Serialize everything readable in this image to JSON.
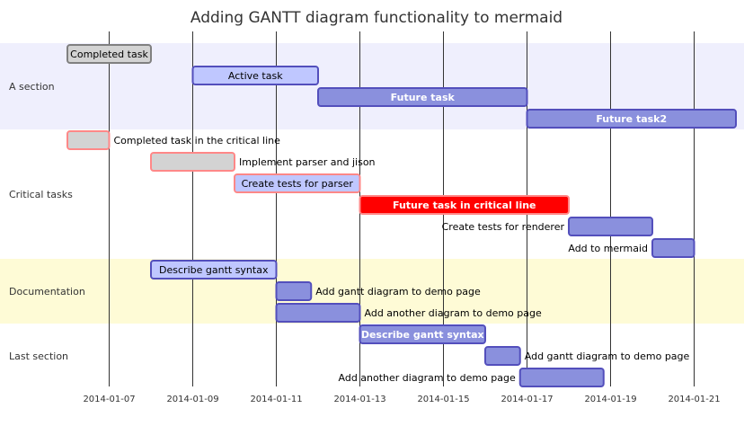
{
  "title": "Adding GANTT diagram functionality to mermaid",
  "colors": {
    "section_band_1": "#efeffd",
    "section_band_2": "#fefbd6",
    "task_done_fill": "#d3d3d3",
    "task_done_stroke": "#808080",
    "task_active_fill": "#bfc7ff",
    "task_future_fill": "#8a90dd",
    "task_stroke": "#534fbc",
    "crit_stroke": "#ff8888",
    "crit_active_fill": "#ff0000",
    "grid": "#333333"
  },
  "sections": [
    {
      "name": "A section",
      "band": "section_band_1"
    },
    {
      "name": "Critical tasks",
      "band": "none"
    },
    {
      "name": "Documentation",
      "band": "section_band_2"
    },
    {
      "name": "Last section",
      "band": "none"
    }
  ],
  "axis": {
    "ticks": [
      "2014-01-07",
      "2014-01-09",
      "2014-01-11",
      "2014-01-13",
      "2014-01-15",
      "2014-01-17",
      "2014-01-19",
      "2014-01-21"
    ]
  },
  "chart_data": {
    "type": "gantt",
    "date_start": "2014-01-06",
    "date_end": "2014-01-22",
    "tasks": [
      {
        "name": "Completed task",
        "section": 0,
        "start": "2014-01-06",
        "end": "2014-01-08",
        "status": "done",
        "crit": false,
        "label_pos": "inside"
      },
      {
        "name": "Active task",
        "section": 0,
        "start": "2014-01-09",
        "end": "2014-01-12",
        "status": "active",
        "crit": false,
        "label_pos": "inside"
      },
      {
        "name": "Future task",
        "section": 0,
        "start": "2014-01-12",
        "end": "2014-01-17",
        "status": "future",
        "crit": false,
        "label_pos": "inside"
      },
      {
        "name": "Future task2",
        "section": 0,
        "start": "2014-01-17",
        "end": "2014-01-22",
        "status": "future",
        "crit": false,
        "label_pos": "inside"
      },
      {
        "name": "Completed task in the critical line",
        "section": 1,
        "start": "2014-01-06",
        "end": "2014-01-07",
        "status": "done",
        "crit": true,
        "label_pos": "right"
      },
      {
        "name": "Implement parser and jison",
        "section": 1,
        "start": "2014-01-08",
        "end": "2014-01-10",
        "status": "done",
        "crit": true,
        "label_pos": "right"
      },
      {
        "name": "Create tests for parser",
        "section": 1,
        "start": "2014-01-10",
        "end": "2014-01-13",
        "status": "active",
        "crit": true,
        "label_pos": "inside"
      },
      {
        "name": "Future task in critical line",
        "section": 1,
        "start": "2014-01-13",
        "end": "2014-01-18",
        "status": "active",
        "crit": true,
        "label_pos": "inside"
      },
      {
        "name": "Create tests for renderer",
        "section": 1,
        "start": "2014-01-18",
        "end": "2014-01-20",
        "status": "future",
        "crit": false,
        "label_pos": "left"
      },
      {
        "name": "Add to mermaid",
        "section": 1,
        "start": "2014-01-20",
        "end": "2014-01-21",
        "status": "future",
        "crit": false,
        "label_pos": "left"
      },
      {
        "name": "Describe gantt syntax",
        "section": 2,
        "start": "2014-01-08",
        "end": "2014-01-11",
        "status": "active",
        "crit": false,
        "label_pos": "inside"
      },
      {
        "name": "Add gantt diagram to demo page",
        "section": 2,
        "start": "2014-01-11",
        "end": "2014-01-11T20:00",
        "status": "future",
        "crit": false,
        "label_pos": "right"
      },
      {
        "name": "Add another diagram to demo page",
        "section": 2,
        "start": "2014-01-11",
        "end": "2014-01-13",
        "status": "future",
        "crit": false,
        "label_pos": "right"
      },
      {
        "name": "Describe gantt syntax",
        "section": 3,
        "start": "2014-01-13",
        "end": "2014-01-16",
        "status": "future",
        "crit": false,
        "label_pos": "inside"
      },
      {
        "name": "Add gantt diagram to demo page",
        "section": 3,
        "start": "2014-01-16",
        "end": "2014-01-16T20:00",
        "status": "future",
        "crit": false,
        "label_pos": "right"
      },
      {
        "name": "Add another diagram to demo page",
        "section": 3,
        "start": "2014-01-16T20:00",
        "end": "2014-01-18T20:00",
        "status": "future",
        "crit": false,
        "label_pos": "left"
      }
    ]
  }
}
